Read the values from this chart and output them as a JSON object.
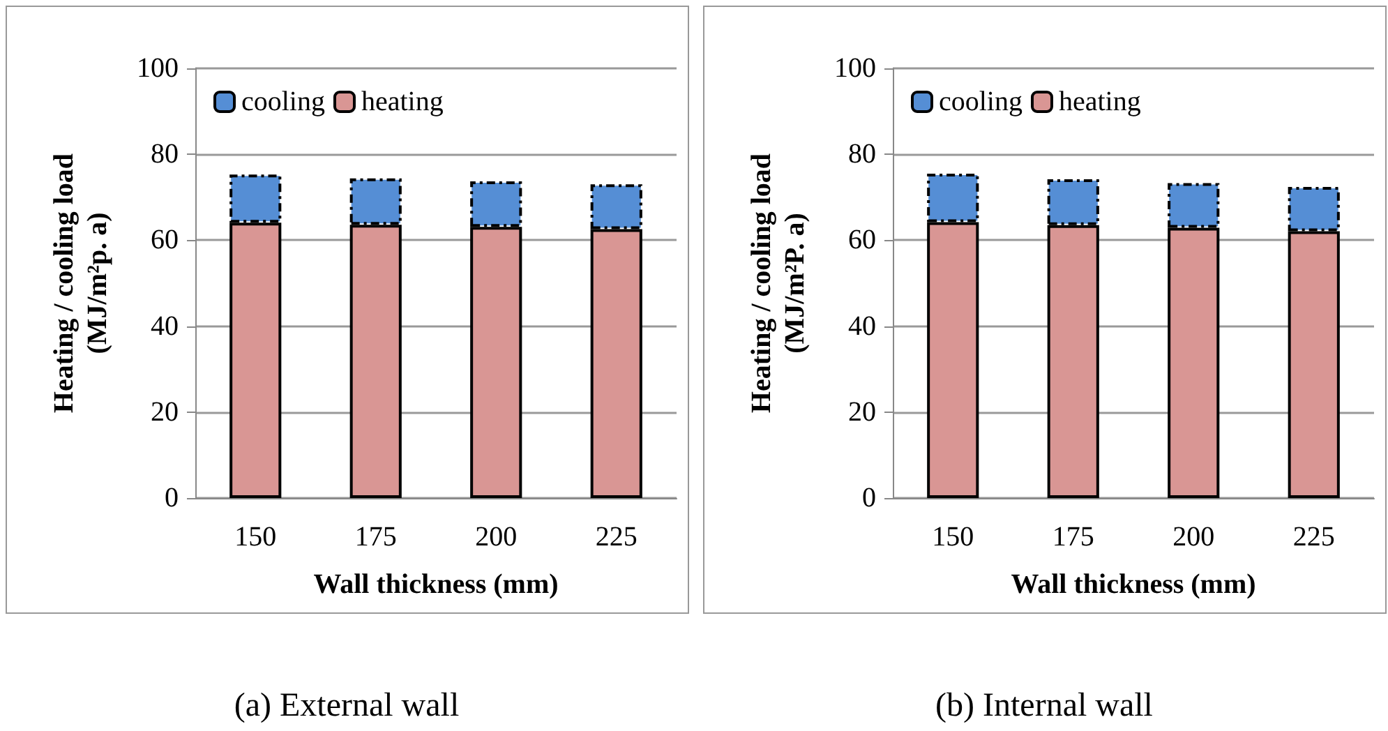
{
  "chart_data": [
    {
      "type": "bar",
      "stacked": true,
      "xlabel": "Wall thickness (mm)",
      "ylabel": "Heating / cooling load\n(MJ/m²p. a)",
      "categories": [
        "150",
        "175",
        "200",
        "225"
      ],
      "series": [
        {
          "name": "heating",
          "color": "#d99694",
          "values": [
            64.1,
            63.6,
            63.1,
            62.6
          ]
        },
        {
          "name": "cooling",
          "color": "#558ed5",
          "values": [
            11.2,
            10.8,
            10.6,
            10.4
          ]
        }
      ],
      "ylim": [
        0,
        100
      ],
      "yticks": [
        0,
        20,
        40,
        60,
        80,
        100
      ],
      "grid": "y",
      "legend": "top left",
      "annotations": [
        "(a) External wall"
      ]
    },
    {
      "type": "bar",
      "stacked": true,
      "xlabel": "Wall thickness (mm)",
      "ylabel": "Heating / cooling load\n(MJ/m²P. a)",
      "categories": [
        "150",
        "175",
        "200",
        "225"
      ],
      "series": [
        {
          "name": "heating",
          "color": "#d99694",
          "values": [
            64.2,
            63.5,
            62.9,
            62.1
          ]
        },
        {
          "name": "cooling",
          "color": "#558ed5",
          "values": [
            11.3,
            10.7,
            10.4,
            10.3
          ]
        }
      ],
      "ylim": [
        0,
        100
      ],
      "yticks": [
        0,
        20,
        40,
        60,
        80,
        100
      ],
      "grid": "y",
      "legend": "top left",
      "annotations": [
        "(b) Internal wall"
      ]
    }
  ]
}
